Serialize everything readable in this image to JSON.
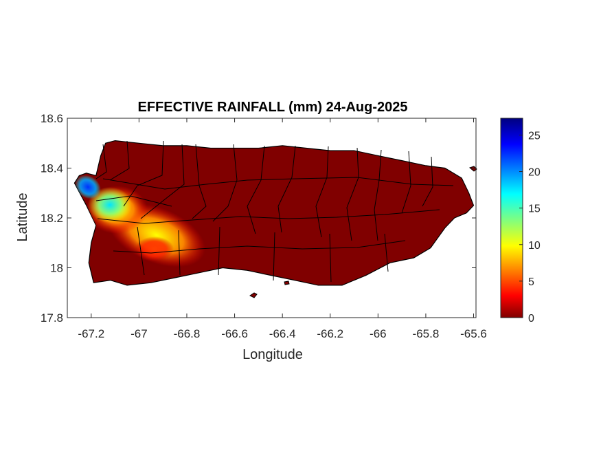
{
  "chart_data": {
    "type": "heatmap",
    "title": "EFFECTIVE RAINFALL (mm) 24-Aug-2025",
    "xlabel": "Longitude",
    "ylabel": "Latitude",
    "xlim": [
      -67.3,
      -65.59
    ],
    "ylim": [
      17.8,
      18.6
    ],
    "xticks": [
      -67.2,
      -67,
      -66.8,
      -66.6,
      -66.4,
      -66.2,
      -66,
      -65.8,
      -65.6
    ],
    "xtick_labels": [
      "-67.2",
      "-67",
      "-66.8",
      "-66.6",
      "-66.4",
      "-66.2",
      "-66",
      "-65.8",
      "-65.6"
    ],
    "yticks": [
      17.8,
      18,
      18.2,
      18.4,
      18.6
    ],
    "ytick_labels": [
      "17.8",
      "18",
      "18.2",
      "18.4",
      "18.6"
    ],
    "colorbar": {
      "colormap": "jet",
      "range": [
        0,
        27.3
      ],
      "ticks": [
        0,
        5,
        10,
        15,
        20,
        25
      ],
      "tick_labels": [
        "0",
        "5",
        "10",
        "15",
        "20",
        "25"
      ]
    },
    "background_value": 0,
    "background_color": "#800000",
    "rainfall_regions": [
      {
        "lon": -67.17,
        "lat": 18.24,
        "value": 22
      },
      {
        "lon": -67.1,
        "lat": 18.22,
        "value": 13
      },
      {
        "lon": -67.05,
        "lat": 18.17,
        "value": 8
      },
      {
        "lon": -66.95,
        "lat": 18.1,
        "value": 5
      }
    ]
  }
}
